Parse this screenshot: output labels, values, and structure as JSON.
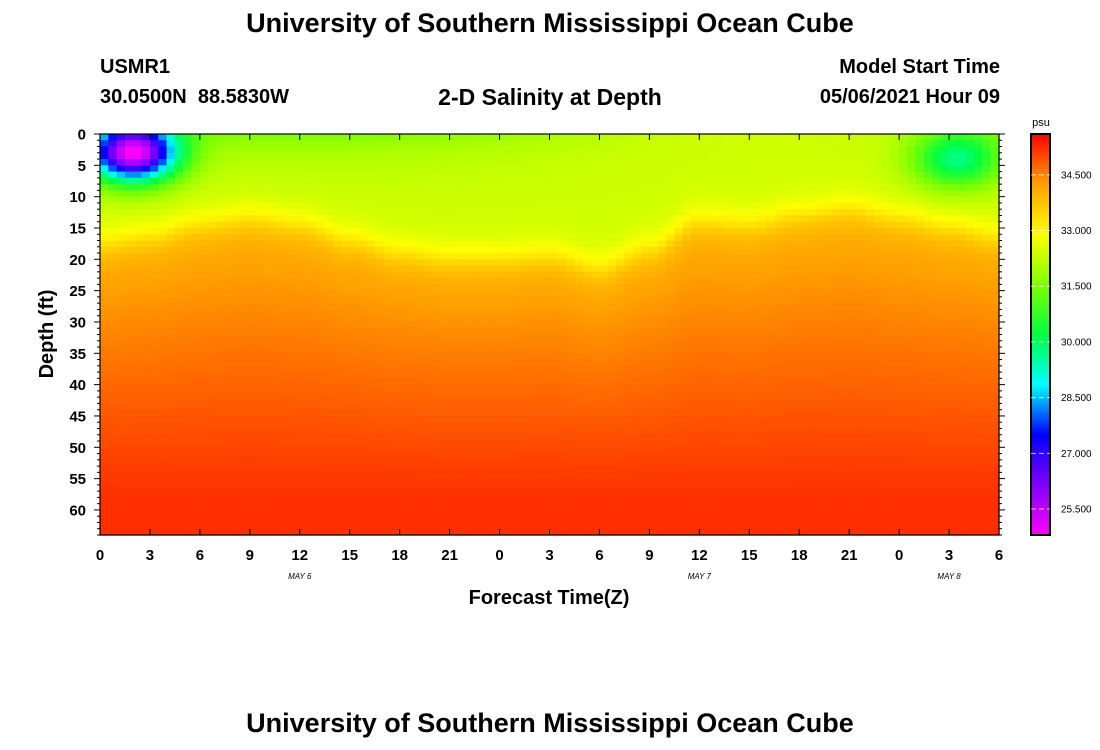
{
  "header": {
    "title": "University of Southern Mississippi Ocean Cube",
    "station_id": "USMR1",
    "coordinates": "30.0500N  88.5830W",
    "plot_title": "2-D Salinity at Depth",
    "start_label": "Model Start Time",
    "start_value": "05/06/2021 Hour 09"
  },
  "footer": {
    "title": "University of Southern Mississippi Ocean Cube"
  },
  "chart_data": {
    "type": "heatmap",
    "title": "2-D Salinity at Depth",
    "xlabel": "Forecast Time(Z)",
    "ylabel": "Depth (ft)",
    "x_ticks": [
      "0",
      "3",
      "6",
      "9",
      "12",
      "15",
      "18",
      "21",
      "0",
      "3",
      "6",
      "9",
      "12",
      "15",
      "18",
      "21",
      "0",
      "3",
      "6"
    ],
    "x_range_hours": [
      0,
      54
    ],
    "date_labels": [
      {
        "label": "MAY 6",
        "hour": 12
      },
      {
        "label": "MAY 7",
        "hour": 36
      },
      {
        "label": "MAY 8",
        "hour": 51
      }
    ],
    "y_ticks": [
      "0",
      "5",
      "10",
      "15",
      "20",
      "25",
      "30",
      "35",
      "40",
      "45",
      "50",
      "55",
      "60"
    ],
    "y_range_ft": [
      0,
      64
    ],
    "colorbar": {
      "unit": "psu",
      "range": [
        24.8,
        35.6
      ],
      "tick_values": [
        34.5,
        33.0,
        31.5,
        30.0,
        28.5,
        27.0,
        25.5
      ],
      "tick_labels": [
        "34.500",
        "33.000",
        "31.500",
        "30.000",
        "28.500",
        "27.000",
        "25.500"
      ],
      "colors": [
        "#ff00ff",
        "#8000ff",
        "#0000ff",
        "#00ffff",
        "#00ff40",
        "#80ff00",
        "#ffff00",
        "#ffa000",
        "#ff0000"
      ]
    },
    "halocline_depth_ft": {
      "hours": [
        0,
        3,
        6,
        9,
        12,
        15,
        18,
        21,
        24,
        27,
        30,
        33,
        36,
        39,
        42,
        45,
        48,
        51,
        54
      ],
      "depths": [
        17,
        16,
        14,
        13,
        14,
        16.5,
        18.5,
        19.5,
        19.5,
        19,
        21,
        18,
        13.5,
        14,
        12.5,
        11.5,
        13,
        14.5,
        16
      ]
    },
    "fresh_anomalies": [
      {
        "hour": 2,
        "depth_ft": 3,
        "salinity_psu": 25.0
      },
      {
        "hour": 51.5,
        "depth_ft": 4,
        "salinity_psu": 29.8
      }
    ],
    "surface_salinity_psu": 32.4,
    "bottom_salinity_psu": 35.2
  }
}
